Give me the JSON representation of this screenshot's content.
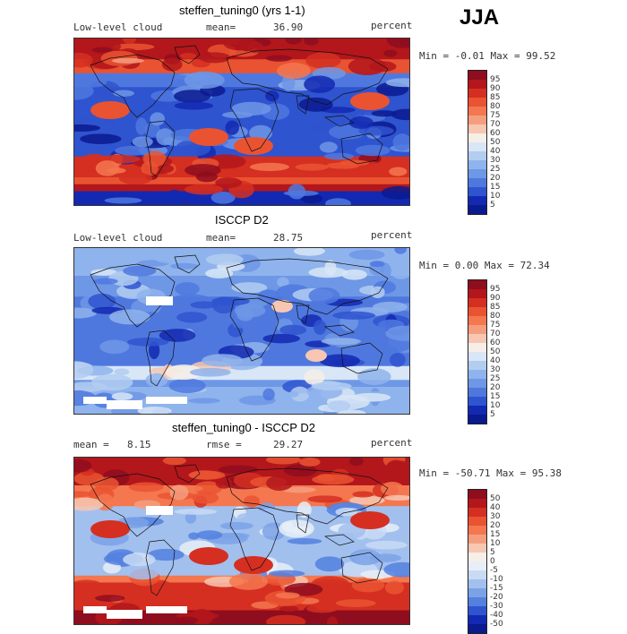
{
  "season": "JJA",
  "panels": [
    {
      "title": "steffen_tuning0 (yrs 1-1)",
      "left_label": "Low-level cloud",
      "stat_label": "mean=",
      "stat_value": "36.90",
      "units": "percent",
      "minmax": "Min =   -0.01 Max =  99.52",
      "map_type": "model",
      "colorbar_labels": [
        "95",
        "90",
        "85",
        "80",
        "75",
        "70",
        "60",
        "50",
        "40",
        "30",
        "25",
        "20",
        "15",
        "10",
        "5"
      ],
      "colorbar_colors": [
        "#8e0d1e",
        "#b3161b",
        "#d52f21",
        "#ea5331",
        "#f4774f",
        "#f59e7f",
        "#f7c7b1",
        "#f6eee8",
        "#d8e6f6",
        "#b3cdf1",
        "#8fb3ec",
        "#6e97e6",
        "#4f78df",
        "#2f54cf",
        "#1329b2",
        "#0a1a8f"
      ]
    },
    {
      "title": "ISCCP D2",
      "left_label": "Low-level cloud",
      "stat_label": "mean=",
      "stat_value": "28.75",
      "units": "percent",
      "minmax": "Min =    0.00 Max =  72.34",
      "map_type": "obs",
      "colorbar_labels": [
        "95",
        "90",
        "85",
        "80",
        "75",
        "70",
        "60",
        "50",
        "40",
        "30",
        "25",
        "20",
        "15",
        "10",
        "5"
      ],
      "colorbar_colors": [
        "#8e0d1e",
        "#b3161b",
        "#d52f21",
        "#ea5331",
        "#f4774f",
        "#f59e7f",
        "#f7c7b1",
        "#f6eee8",
        "#d8e6f6",
        "#b3cdf1",
        "#8fb3ec",
        "#6e97e6",
        "#4f78df",
        "#2f54cf",
        "#1329b2",
        "#0a1a8f"
      ]
    },
    {
      "title": "steffen_tuning0 - ISCCP D2",
      "left_label": "mean =",
      "left_value": "8.15",
      "stat_label": "rmse =",
      "stat_value": "29.27",
      "units": "percent",
      "minmax": "Min =  -50.71 Max =  95.38",
      "map_type": "diff",
      "colorbar_labels": [
        "50",
        "40",
        "30",
        "20",
        "15",
        "10",
        "5",
        "0",
        "-5",
        "-10",
        "-15",
        "-20",
        "-30",
        "-40",
        "-50"
      ],
      "colorbar_colors": [
        "#8e0d1e",
        "#b3161b",
        "#d52f21",
        "#ea5331",
        "#f4774f",
        "#f59e7f",
        "#f7c7b1",
        "#f6eee8",
        "#e8eef8",
        "#c9daf4",
        "#a2c0ee",
        "#7ba2e7",
        "#5480df",
        "#2f54cf",
        "#1329b2",
        "#0a1a8f"
      ]
    }
  ]
}
